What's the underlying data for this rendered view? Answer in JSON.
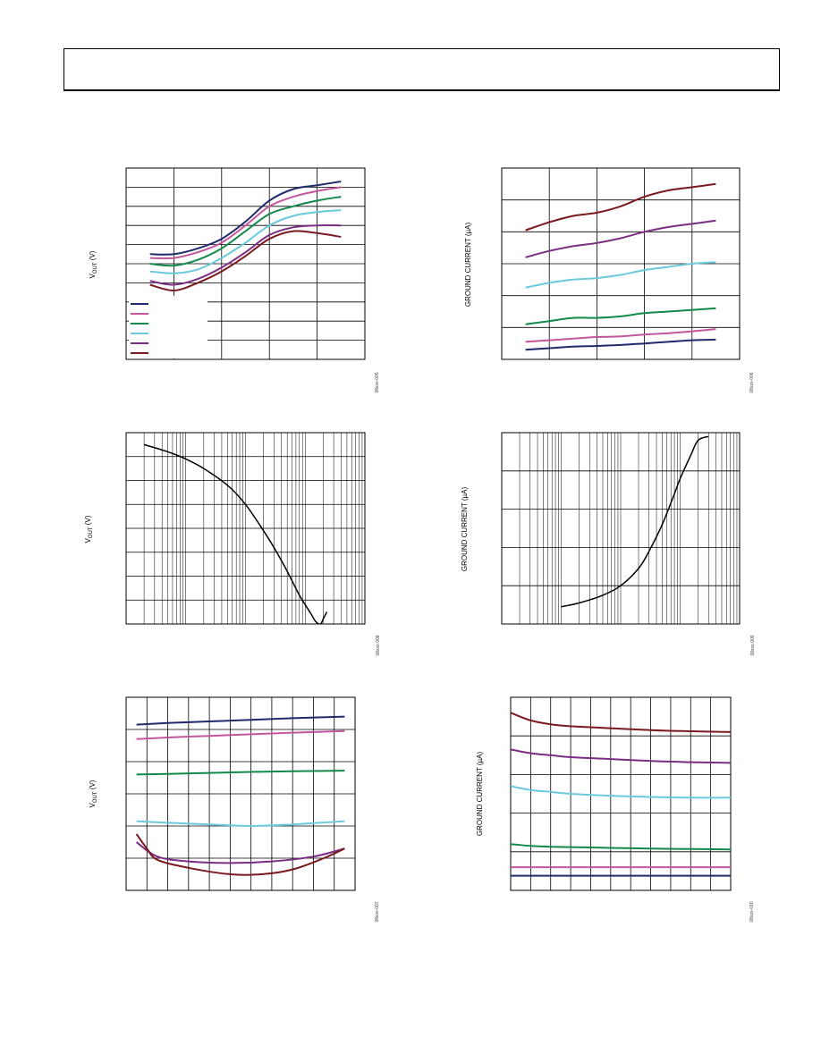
{
  "colors": {
    "navy": "#1f2a6b",
    "pink": "#c2569c",
    "green": "#128a4a",
    "cyan": "#6cc9dc",
    "purple": "#7a2d82",
    "maroon": "#7a1a1e",
    "black": "#000000"
  },
  "chart_data": [
    {
      "id": "chart-1",
      "type": "line",
      "title": "",
      "xlabel": "",
      "ylabel": "V",
      "ylabel_sub": "OUT",
      "ylabel_unit": " (V)",
      "xscale": "linear",
      "xlim": [
        0,
        5
      ],
      "ylim": [
        0,
        10
      ],
      "grid": true,
      "legend": "bottom-left",
      "figure_id": "08xxx-005",
      "series": [
        {
          "color": "navy",
          "x": [
            0.5,
            1.0,
            1.5,
            2.0,
            2.5,
            3.0,
            3.5,
            4.0,
            4.5
          ],
          "y": [
            5.5,
            5.5,
            5.8,
            6.3,
            7.2,
            8.3,
            8.9,
            9.1,
            9.3
          ]
        },
        {
          "color": "pink",
          "x": [
            0.5,
            1.0,
            1.5,
            2.0,
            2.5,
            3.0,
            3.5,
            4.0,
            4.5
          ],
          "y": [
            5.3,
            5.3,
            5.6,
            6.1,
            7.0,
            8.0,
            8.5,
            8.8,
            9.0
          ]
        },
        {
          "color": "green",
          "x": [
            0.5,
            1.0,
            1.5,
            2.0,
            2.5,
            3.0,
            3.5,
            4.0,
            4.5
          ],
          "y": [
            5.0,
            4.9,
            5.2,
            5.8,
            6.7,
            7.6,
            8.0,
            8.3,
            8.5
          ]
        },
        {
          "color": "cyan",
          "x": [
            0.5,
            1.0,
            1.5,
            2.0,
            2.5,
            3.0,
            3.5,
            4.0,
            4.5
          ],
          "y": [
            4.6,
            4.5,
            4.7,
            5.3,
            6.1,
            7.0,
            7.5,
            7.7,
            7.8
          ]
        },
        {
          "color": "purple",
          "x": [
            0.5,
            1.0,
            1.5,
            2.0,
            2.5,
            3.0,
            3.5,
            4.0,
            4.5
          ],
          "y": [
            4.1,
            3.9,
            4.2,
            4.8,
            5.6,
            6.5,
            6.9,
            7.0,
            7.0
          ]
        },
        {
          "color": "maroon",
          "x": [
            0.5,
            1.0,
            1.5,
            2.0,
            2.5,
            3.0,
            3.5,
            4.0,
            4.5
          ],
          "y": [
            3.9,
            3.6,
            4.0,
            4.6,
            5.4,
            6.3,
            6.7,
            6.6,
            6.4
          ]
        }
      ]
    },
    {
      "id": "chart-2",
      "type": "line",
      "title": "",
      "xlabel": "",
      "ylabel": "GROUND CURRENT (µA)",
      "xscale": "linear",
      "xlim": [
        0,
        5
      ],
      "ylim": [
        0,
        6
      ],
      "grid": true,
      "figure_id": "08xxx-006",
      "series": [
        {
          "color": "maroon",
          "x": [
            0.5,
            1.0,
            1.5,
            2.0,
            2.5,
            3.0,
            3.5,
            4.0,
            4.5
          ],
          "y": [
            4.05,
            4.3,
            4.5,
            4.6,
            4.8,
            5.1,
            5.3,
            5.4,
            5.5
          ]
        },
        {
          "color": "purple",
          "x": [
            0.5,
            1.0,
            1.5,
            2.0,
            2.5,
            3.0,
            3.5,
            4.0,
            4.5
          ],
          "y": [
            3.2,
            3.4,
            3.55,
            3.65,
            3.8,
            4.0,
            4.15,
            4.25,
            4.35
          ]
        },
        {
          "color": "cyan",
          "x": [
            0.5,
            1.0,
            1.5,
            2.0,
            2.5,
            3.0,
            3.5,
            4.0,
            4.5
          ],
          "y": [
            2.25,
            2.4,
            2.5,
            2.55,
            2.65,
            2.8,
            2.9,
            3.0,
            3.05
          ]
        },
        {
          "color": "green",
          "x": [
            0.5,
            1.0,
            1.5,
            2.0,
            2.5,
            3.0,
            3.5,
            4.0,
            4.5
          ],
          "y": [
            1.1,
            1.2,
            1.3,
            1.3,
            1.35,
            1.45,
            1.5,
            1.55,
            1.6
          ]
        },
        {
          "color": "pink",
          "x": [
            0.5,
            1.0,
            1.5,
            2.0,
            2.5,
            3.0,
            3.5,
            4.0,
            4.5
          ],
          "y": [
            0.55,
            0.6,
            0.65,
            0.7,
            0.72,
            0.78,
            0.82,
            0.88,
            0.95
          ]
        },
        {
          "color": "navy",
          "x": [
            0.5,
            1.0,
            1.5,
            2.0,
            2.5,
            3.0,
            3.5,
            4.0,
            4.5
          ],
          "y": [
            0.3,
            0.35,
            0.4,
            0.42,
            0.45,
            0.5,
            0.55,
            0.6,
            0.62
          ]
        }
      ]
    },
    {
      "id": "chart-3",
      "type": "line",
      "title": "",
      "xlabel": "",
      "ylabel": "V",
      "ylabel_sub": "OUT",
      "ylabel_unit": " (V)",
      "xscale": "log",
      "xlim": [
        0.01,
        100
      ],
      "ylim": [
        0,
        8
      ],
      "grid": true,
      "figure_id": "08xxx-008",
      "series": [
        {
          "color": "black",
          "x": [
            0.02,
            0.05,
            0.1,
            0.2,
            0.5,
            1,
            2,
            3,
            5,
            8,
            12,
            15,
            18,
            20,
            23
          ],
          "y": [
            7.5,
            7.2,
            6.9,
            6.5,
            5.8,
            5.0,
            3.9,
            3.2,
            2.2,
            1.2,
            0.5,
            0.1,
            0.0,
            0.2,
            0.5
          ]
        }
      ]
    },
    {
      "id": "chart-4",
      "type": "line",
      "title": "",
      "xlabel": "",
      "ylabel": "GROUND CURRENT (µA)",
      "xscale": "log",
      "xlim": [
        0.01,
        100
      ],
      "ylim": [
        0,
        5
      ],
      "grid": true,
      "figure_id": "08xxx-009",
      "series": [
        {
          "color": "black",
          "x": [
            0.1,
            0.2,
            0.5,
            1,
            2,
            3,
            5,
            8,
            10,
            15,
            20,
            30
          ],
          "y": [
            0.45,
            0.55,
            0.75,
            1.0,
            1.45,
            1.9,
            2.6,
            3.4,
            3.8,
            4.4,
            4.8,
            4.9
          ]
        }
      ]
    },
    {
      "id": "chart-5",
      "type": "line",
      "title": "",
      "xlabel": "",
      "ylabel": "V",
      "ylabel_sub": "OUT",
      "ylabel_unit": " (V)",
      "xscale": "linear",
      "xlim": [
        0,
        11
      ],
      "ylim": [
        0,
        6
      ],
      "grid": true,
      "figure_id": "08xxx-007",
      "series": [
        {
          "color": "navy",
          "x": [
            0.5,
            2,
            4,
            6,
            8,
            10.5
          ],
          "y": [
            5.15,
            5.2,
            5.25,
            5.3,
            5.35,
            5.4
          ]
        },
        {
          "color": "pink",
          "x": [
            0.5,
            2,
            4,
            6,
            8,
            10.5
          ],
          "y": [
            4.7,
            4.75,
            4.8,
            4.85,
            4.9,
            4.95
          ]
        },
        {
          "color": "green",
          "x": [
            0.5,
            2,
            4,
            6,
            8,
            10.5
          ],
          "y": [
            3.6,
            3.62,
            3.65,
            3.68,
            3.7,
            3.72
          ]
        },
        {
          "color": "cyan",
          "x": [
            0.5,
            2,
            4,
            6,
            8,
            10.5
          ],
          "y": [
            2.15,
            2.1,
            2.05,
            2.0,
            2.05,
            2.15
          ]
        },
        {
          "color": "purple",
          "x": [
            0.5,
            1.5,
            3,
            5,
            7,
            9,
            10.5
          ],
          "y": [
            1.5,
            1.05,
            0.9,
            0.85,
            0.9,
            1.05,
            1.3
          ]
        },
        {
          "color": "maroon",
          "x": [
            0.5,
            1.0,
            1.5,
            3,
            5,
            6.5,
            8,
            9.5,
            10.5
          ],
          "y": [
            1.75,
            1.3,
            0.95,
            0.7,
            0.5,
            0.5,
            0.65,
            1.0,
            1.3
          ]
        }
      ]
    },
    {
      "id": "chart-6",
      "type": "line",
      "title": "",
      "xlabel": "",
      "ylabel": "GROUND CURRENT (µA)",
      "xscale": "linear",
      "xlim": [
        0,
        11
      ],
      "ylim": [
        0,
        5
      ],
      "grid": true,
      "figure_id": "08xxx-010",
      "series": [
        {
          "color": "maroon",
          "x": [
            0,
            1,
            2,
            3,
            5,
            7,
            9,
            11
          ],
          "y": [
            4.6,
            4.4,
            4.3,
            4.25,
            4.2,
            4.15,
            4.12,
            4.1
          ]
        },
        {
          "color": "purple",
          "x": [
            0,
            1,
            2,
            3,
            5,
            7,
            9,
            11
          ],
          "y": [
            3.65,
            3.55,
            3.5,
            3.45,
            3.4,
            3.35,
            3.32,
            3.3
          ]
        },
        {
          "color": "cyan",
          "x": [
            0,
            1,
            2,
            3,
            5,
            7,
            9,
            11
          ],
          "y": [
            2.7,
            2.6,
            2.55,
            2.5,
            2.45,
            2.42,
            2.4,
            2.4
          ]
        },
        {
          "color": "green",
          "x": [
            0,
            1,
            2,
            3,
            5,
            7,
            9,
            11
          ],
          "y": [
            1.2,
            1.15,
            1.13,
            1.12,
            1.1,
            1.08,
            1.07,
            1.06
          ]
        },
        {
          "color": "pink",
          "x": [
            0,
            2,
            4,
            6,
            8,
            11
          ],
          "y": [
            0.6,
            0.6,
            0.6,
            0.6,
            0.6,
            0.6
          ]
        },
        {
          "color": "navy",
          "x": [
            0,
            2,
            4,
            6,
            8,
            11
          ],
          "y": [
            0.38,
            0.38,
            0.38,
            0.38,
            0.38,
            0.38
          ]
        }
      ]
    }
  ]
}
